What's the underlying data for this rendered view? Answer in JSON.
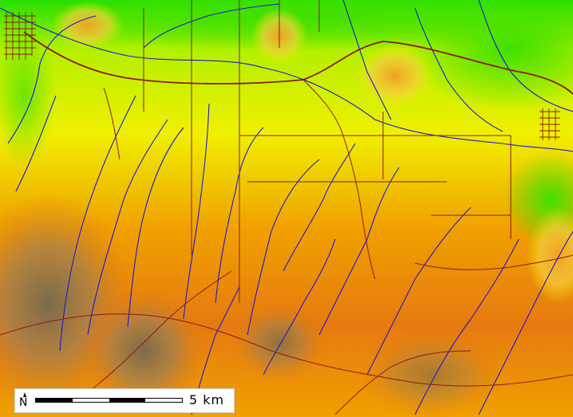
{
  "map": {
    "colors": {
      "lowland": "#26e000",
      "low": "#b4f000",
      "mid": "#f0f000",
      "upper": "#f0a000",
      "high": "#e67a10",
      "peak": "#8c6e3c",
      "roads": "#8b1a1a",
      "streams": "#1a1ad2"
    },
    "scale_bar": {
      "north_label": "N",
      "distance_label": "5 km"
    }
  }
}
